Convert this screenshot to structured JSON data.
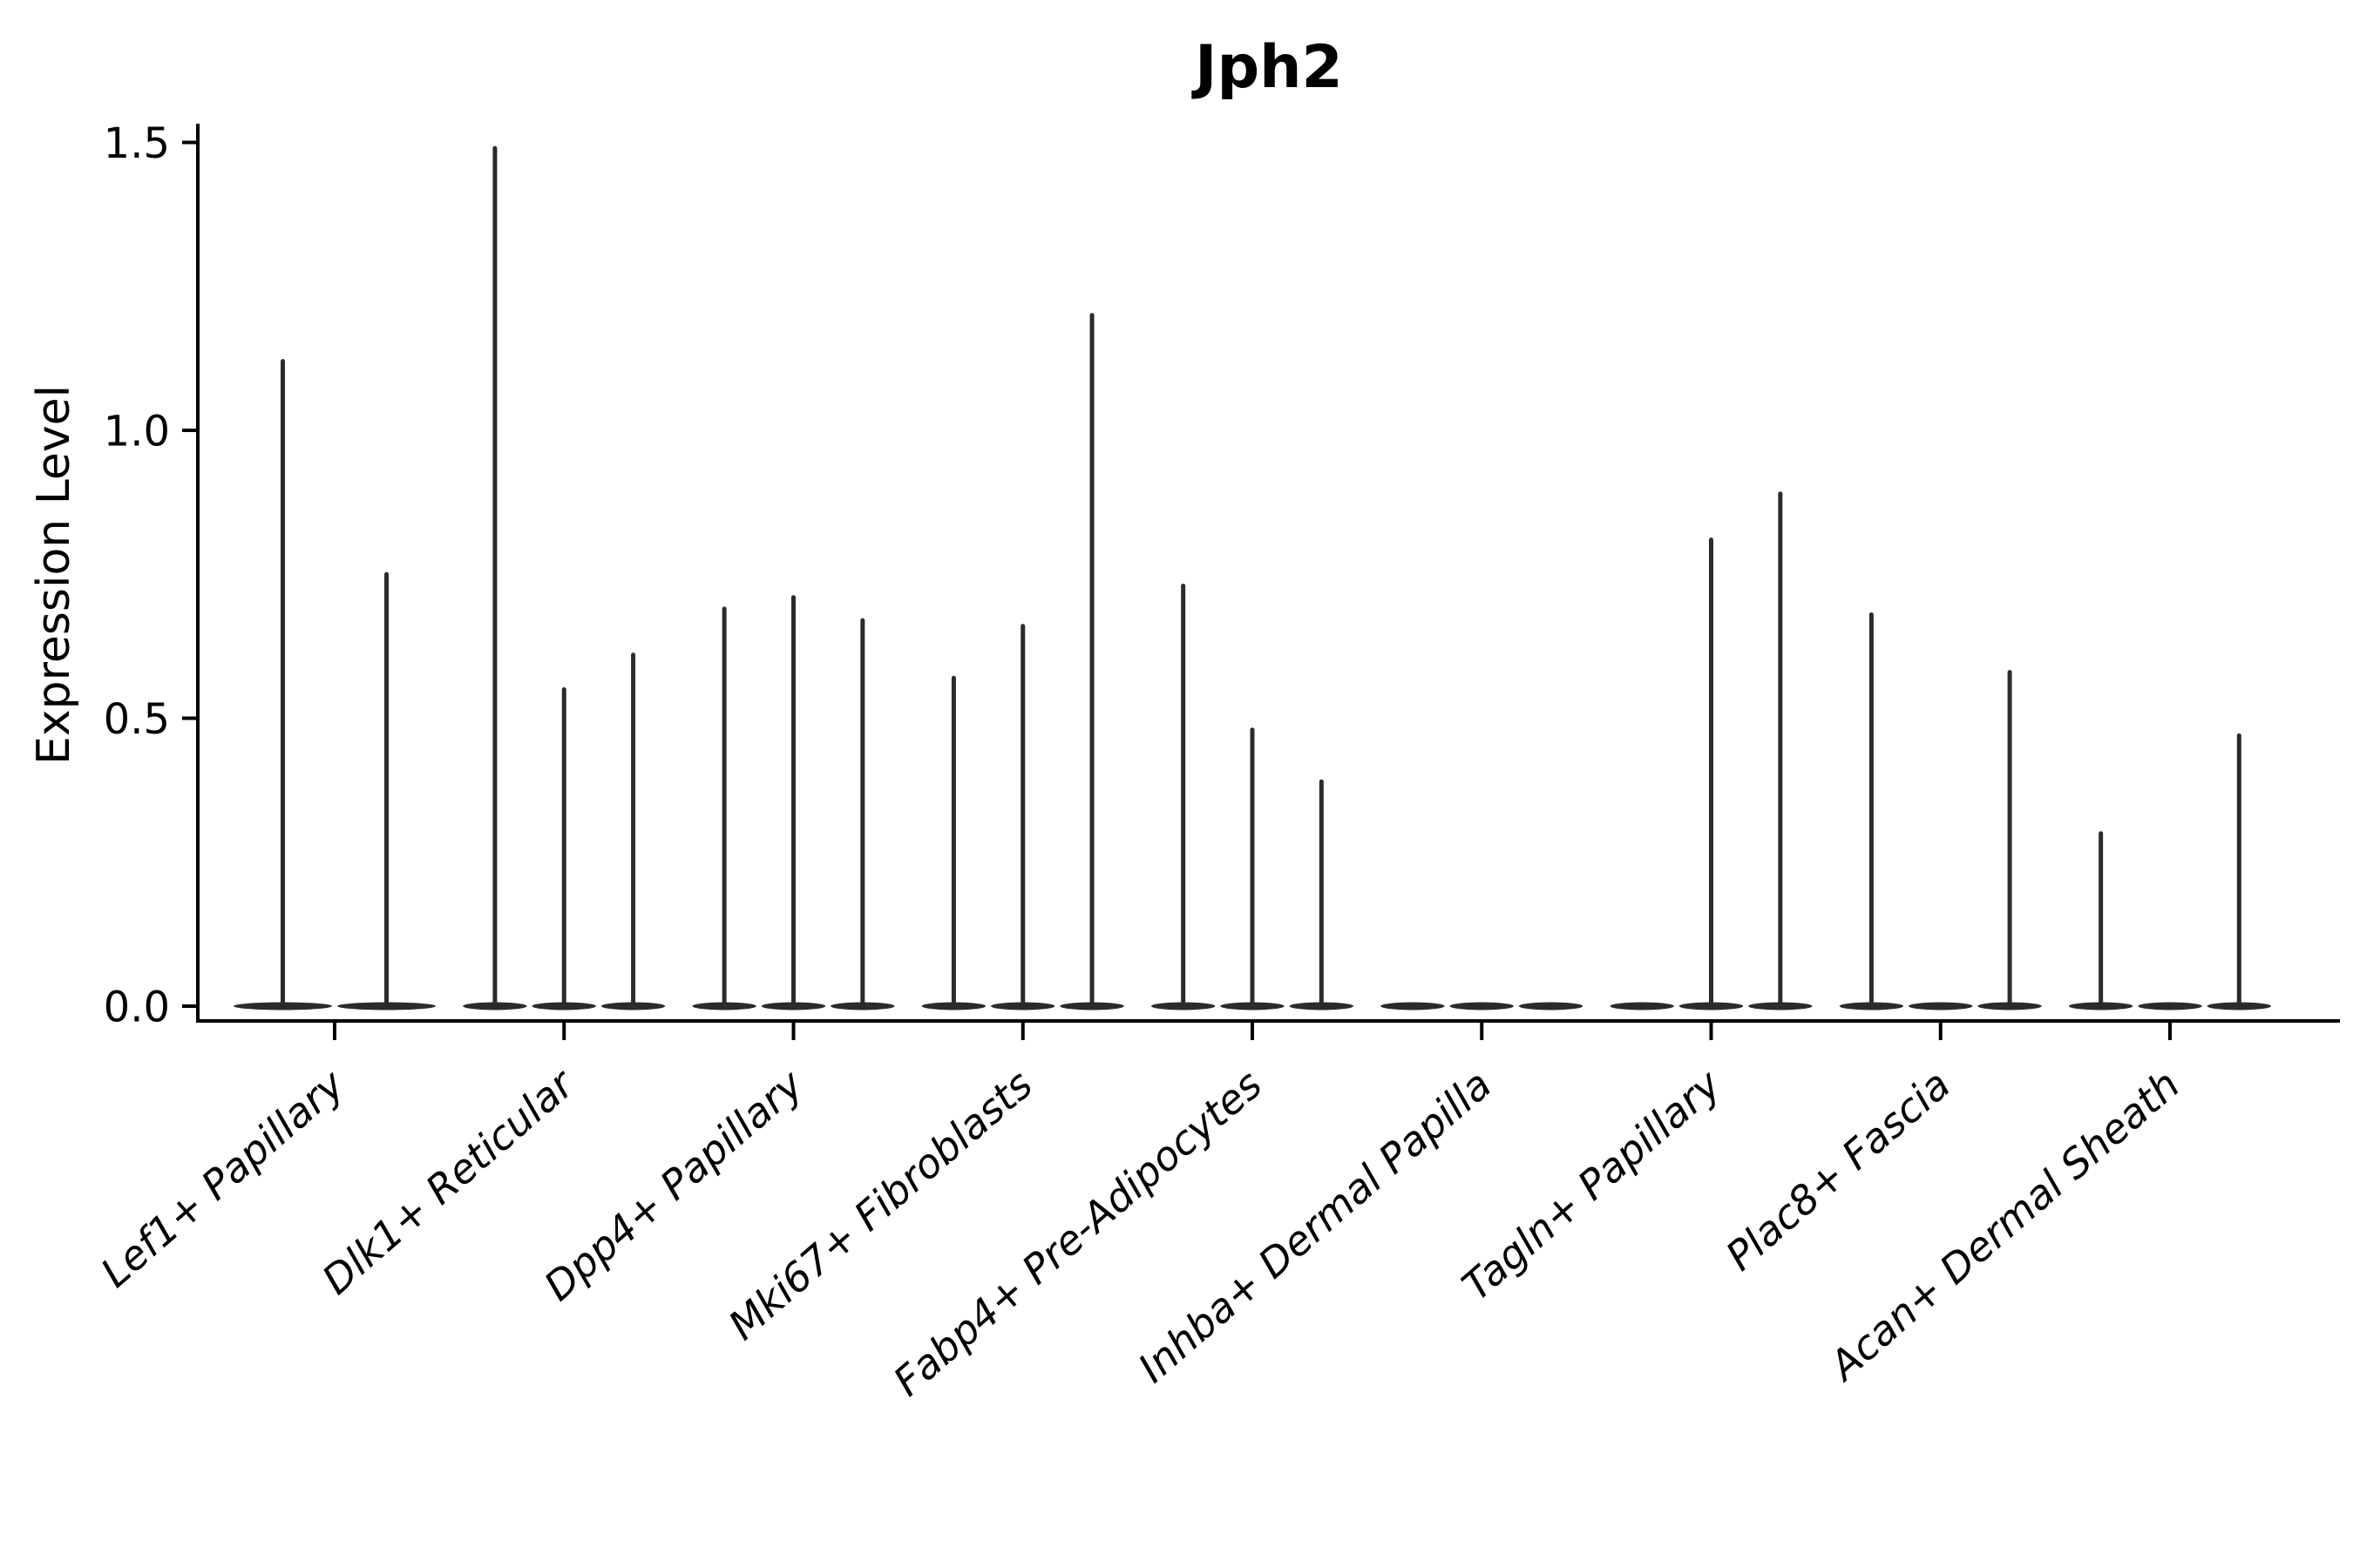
{
  "header": {
    "title": "Jph2"
  },
  "axes": {
    "y_label": "Expression Level"
  },
  "chart_data": {
    "type": "violin",
    "title": "Jph2",
    "xlabel": "",
    "ylabel": "Expression Level",
    "ytick_labels": [
      "0.0",
      "0.5",
      "1.0",
      "1.5"
    ],
    "ytick_values": [
      0,
      0.5,
      1.0,
      1.5
    ],
    "ylim": [
      -0.05,
      1.53
    ],
    "grid": false,
    "legend_position": "none",
    "categories": [
      "Lef1+ Papillary",
      "Dlk1+ Reticular",
      "Dpp4+ Papillary",
      "Mki67+ Fibroblasts",
      "Fabp4+ Pre-Adipocytes",
      "Inhba+ Dermal Papilla",
      "Tagln+ Papillary",
      "Plac8+ Fascia",
      "Acan+ Dermal Sheath"
    ],
    "groups": [
      {
        "label": "Lef1+ Papillary",
        "violin_max_expression": [
          1.12,
          0.75
        ]
      },
      {
        "label": "Dlk1+ Reticular",
        "violin_max_expression": [
          1.49,
          0.55,
          0.61
        ]
      },
      {
        "label": "Dpp4+ Papillary",
        "violin_max_expression": [
          0.69,
          0.71,
          0.67
        ]
      },
      {
        "label": "Mki67+ Fibroblasts",
        "violin_max_expression": [
          0.57,
          0.66,
          1.2
        ]
      },
      {
        "label": "Fabp4+ Pre-Adipocytes",
        "violin_max_expression": [
          0.73,
          0.48,
          0.39
        ]
      },
      {
        "label": "Inhba+ Dermal Papilla",
        "violin_max_expression": [
          0,
          0,
          0
        ]
      },
      {
        "label": "Tagln+ Papillary",
        "violin_max_expression": [
          0,
          0.81,
          0.89
        ]
      },
      {
        "label": "Plac8+ Fascia",
        "violin_max_expression": [
          0.68,
          0,
          0.58
        ]
      },
      {
        "label": "Acan+ Dermal Sheath",
        "violin_max_expression": [
          0.3,
          0,
          0.47
        ]
      }
    ],
    "style": {
      "violin_color": "#2b2b2b",
      "axis_color": "#000000",
      "text_color": "#000000",
      "background_color": "#ffffff"
    }
  }
}
